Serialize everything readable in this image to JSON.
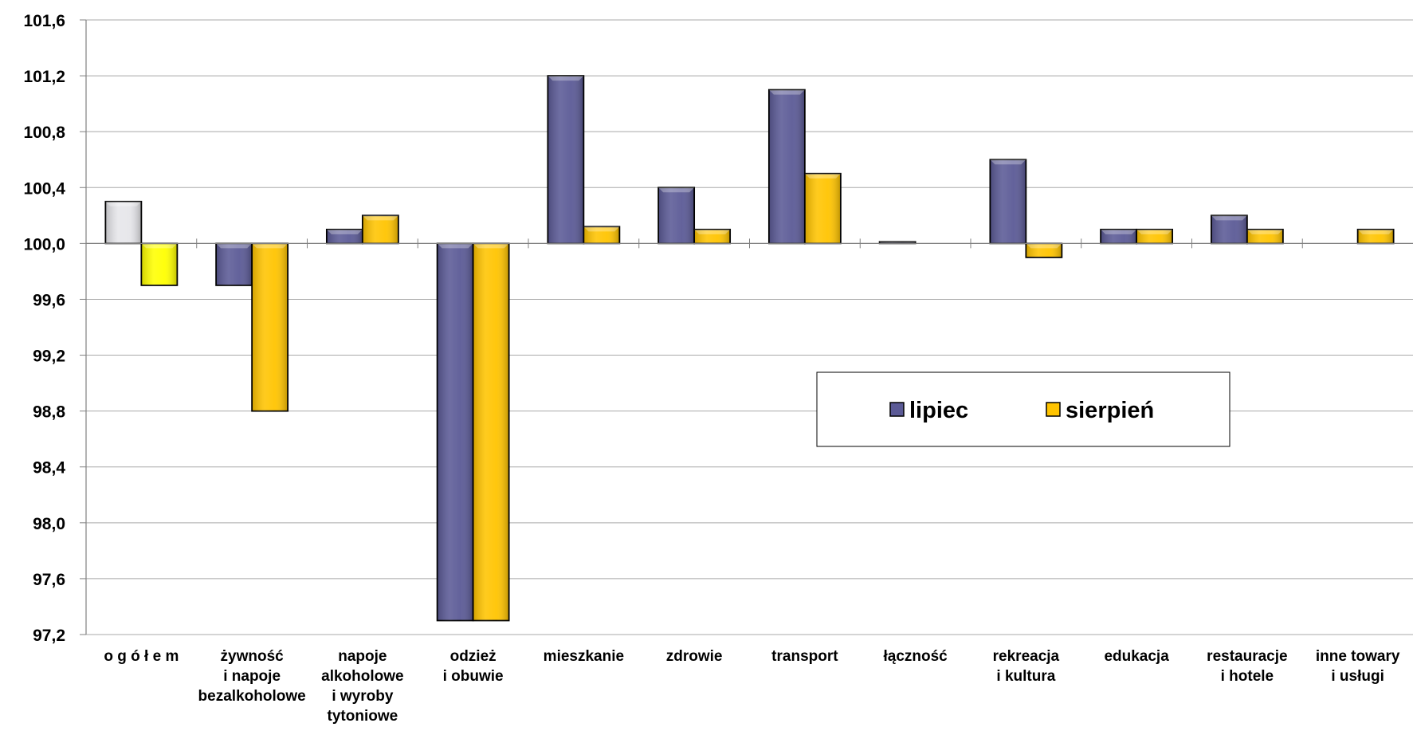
{
  "chart_data": {
    "type": "bar",
    "baseline": 100.0,
    "ylim": [
      97.2,
      101.6
    ],
    "yticks": [
      "101,6",
      "101,2",
      "100,8",
      "100,4",
      "100,0",
      "99,6",
      "99,2",
      "98,8",
      "98,4",
      "98,0",
      "97,6",
      "97,2"
    ],
    "grid": true,
    "legend_position": "center-right",
    "categories": [
      [
        "o g ó ł e m"
      ],
      [
        "żywność",
        "i napoje",
        "bezalkoholowe"
      ],
      [
        "napoje",
        "alkoholowe",
        "i wyroby",
        "tytoniowe"
      ],
      [
        "odzież",
        "i obuwie"
      ],
      [
        "mieszkanie"
      ],
      [
        "zdrowie"
      ],
      [
        "transport"
      ],
      [
        "łączność"
      ],
      [
        "rekreacja",
        "i kultura"
      ],
      [
        "edukacja"
      ],
      [
        "restauracje",
        "i hotele"
      ],
      [
        "inne towary",
        "i usługi"
      ]
    ],
    "series": [
      {
        "name": "lipiec",
        "color": "#5b5a96",
        "first_point_color": "#e6e6ea",
        "values": [
          100.3,
          99.7,
          100.1,
          97.3,
          101.2,
          100.4,
          101.1,
          100.0,
          100.6,
          100.1,
          100.2,
          null
        ]
      },
      {
        "name": "sierpień",
        "color": "#ffc400",
        "first_point_color": "#ffff00",
        "values": [
          99.7,
          98.8,
          100.2,
          97.3,
          100.12,
          100.1,
          100.5,
          null,
          99.9,
          100.1,
          100.1,
          100.1
        ]
      }
    ]
  }
}
